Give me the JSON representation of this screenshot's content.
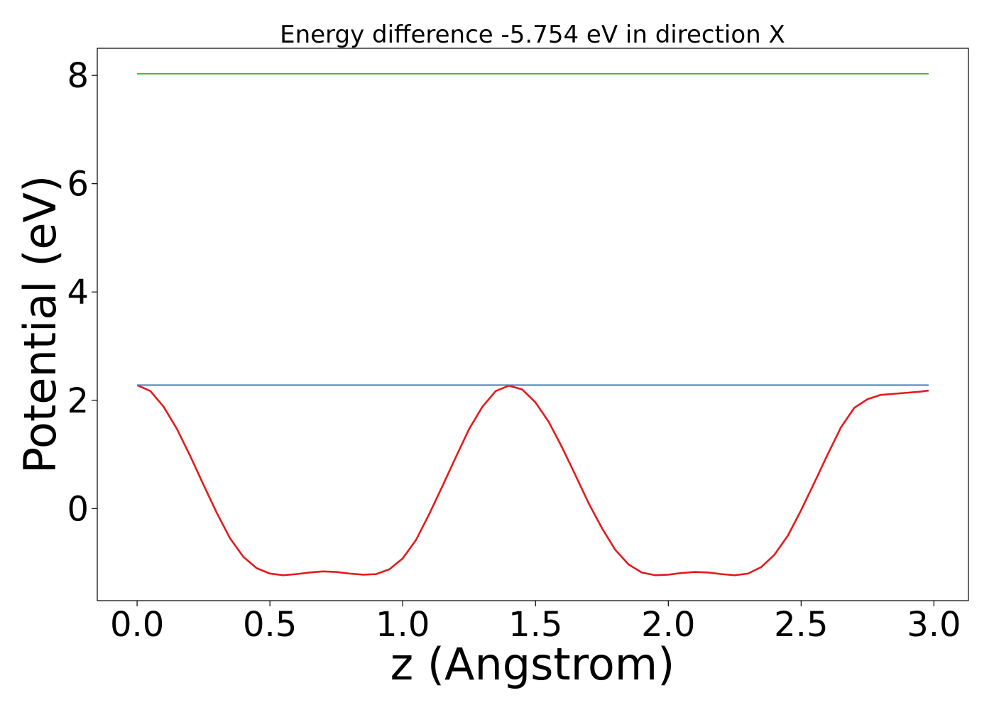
{
  "chart_data": {
    "type": "line",
    "title": "Energy difference -5.754 eV in direction X",
    "xlabel": "z (Angstrom)",
    "ylabel": "Potential (eV)",
    "xlim": [
      -0.15,
      3.13
    ],
    "ylim": [
      -1.7,
      8.5
    ],
    "xticks": [
      0.0,
      0.5,
      1.0,
      1.5,
      2.0,
      2.5,
      3.0
    ],
    "xtick_labels": [
      "0.0",
      "0.5",
      "1.0",
      "1.5",
      "2.0",
      "2.5",
      "3.0"
    ],
    "yticks": [
      0,
      2,
      4,
      6,
      8
    ],
    "ytick_labels": [
      "0",
      "2",
      "4",
      "6",
      "8"
    ],
    "grid": false,
    "legend": null,
    "series": [
      {
        "color": "#e41a1c",
        "x": [
          0.0,
          0.05,
          0.1,
          0.15,
          0.2,
          0.25,
          0.3,
          0.35,
          0.4,
          0.45,
          0.5,
          0.55,
          0.6,
          0.65,
          0.7,
          0.75,
          0.8,
          0.85,
          0.9,
          0.95,
          1.0,
          1.05,
          1.1,
          1.15,
          1.2,
          1.25,
          1.3,
          1.35,
          1.4,
          1.45,
          1.5,
          1.55,
          1.6,
          1.65,
          1.7,
          1.75,
          1.8,
          1.85,
          1.9,
          1.95,
          2.0,
          2.05,
          2.1,
          2.15,
          2.2,
          2.25,
          2.3,
          2.35,
          2.4,
          2.45,
          2.5,
          2.55,
          2.6,
          2.65,
          2.7,
          2.75,
          2.8,
          2.85,
          2.9,
          2.95,
          2.98
        ],
        "y": [
          2.28,
          2.17,
          1.88,
          1.47,
          0.97,
          0.44,
          -0.08,
          -0.55,
          -0.89,
          -1.1,
          -1.2,
          -1.23,
          -1.21,
          -1.18,
          -1.16,
          -1.17,
          -1.2,
          -1.22,
          -1.21,
          -1.12,
          -0.92,
          -0.58,
          -0.1,
          0.42,
          0.95,
          1.47,
          1.88,
          2.17,
          2.27,
          2.2,
          1.96,
          1.6,
          1.13,
          0.62,
          0.1,
          -0.36,
          -0.76,
          -1.03,
          -1.18,
          -1.23,
          -1.22,
          -1.19,
          -1.17,
          -1.18,
          -1.21,
          -1.23,
          -1.2,
          -1.08,
          -0.85,
          -0.5,
          -0.03,
          0.48,
          1.0,
          1.5,
          1.86,
          2.02,
          2.1,
          2.12,
          2.14,
          2.16,
          2.18
        ]
      },
      {
        "color": "#4a7fc0",
        "x": [
          0.0,
          2.98
        ],
        "y": [
          2.28,
          2.28
        ]
      },
      {
        "color": "#4daf4a",
        "x": [
          0.0,
          2.98
        ],
        "y": [
          8.03,
          8.03
        ]
      }
    ]
  }
}
